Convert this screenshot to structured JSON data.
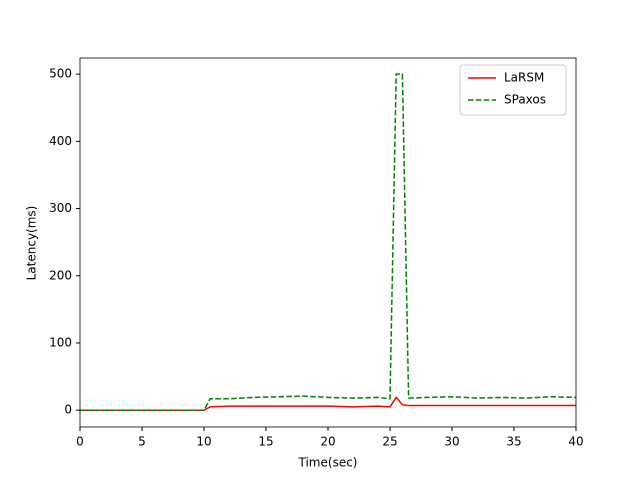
{
  "chart_data": {
    "type": "line",
    "x_label": "Time(sec)",
    "y_label": "Latency(ms)",
    "x": [
      0,
      10,
      10.5,
      12,
      14,
      16,
      18,
      20,
      22,
      24,
      25,
      25.5,
      26,
      26.5,
      28,
      30,
      32,
      34,
      36,
      38,
      40
    ],
    "series": [
      {
        "name": "LaRSM",
        "color": "#ff0000",
        "linestyle": "solid",
        "values": [
          0,
          0,
          5,
          6,
          6,
          6,
          6,
          6,
          5,
          6,
          5,
          19,
          8,
          7,
          7,
          7,
          7,
          7,
          7,
          7,
          7
        ]
      },
      {
        "name": "SPaxos",
        "color": "#008000",
        "linestyle": "dashed",
        "values": [
          0,
          0,
          17,
          17,
          19,
          20,
          21,
          19,
          18,
          19,
          17,
          500,
          500,
          18,
          19,
          20,
          18,
          19,
          18,
          20,
          19
        ]
      }
    ],
    "xlim": [
      0,
      40
    ],
    "xticks": [
      0,
      5,
      10,
      15,
      20,
      25,
      30,
      35,
      40
    ],
    "ylim": [
      -25,
      524
    ],
    "yticks": [
      0,
      100,
      200,
      300,
      400,
      500
    ],
    "legend": "upper right"
  }
}
